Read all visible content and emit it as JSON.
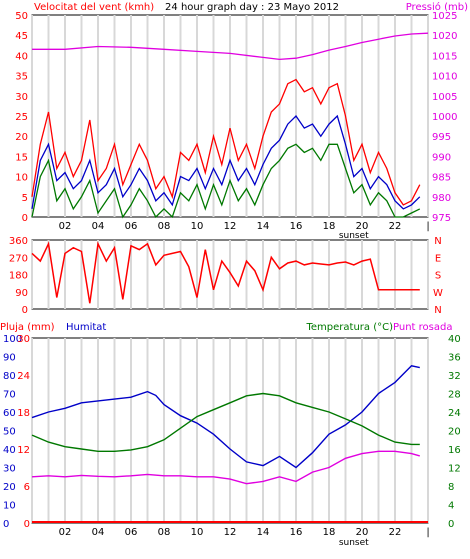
{
  "chart_data": [
    {
      "type": "line",
      "title": "24 hour graph day : 23 Mayo 2012",
      "ylabel_left": "Velocitat del vent (kmh)",
      "ylabel_right": "Pressió (mb)",
      "x_ticks": [
        "02",
        "04",
        "06",
        "08",
        "10",
        "12",
        "14",
        "16",
        "18",
        "20",
        "22",
        "|"
      ],
      "x_annotation": "sunset",
      "x_annotation_at": 19.5,
      "xlim": [
        0,
        24
      ],
      "ylim_left": [
        0,
        50
      ],
      "ylim_right": [
        975,
        1025
      ],
      "y_ticks_left": [
        0,
        5,
        10,
        15,
        20,
        25,
        30,
        35,
        40,
        45,
        50
      ],
      "y_ticks_right": [
        975,
        980,
        985,
        990,
        995,
        1000,
        1005,
        1010,
        1015,
        1020,
        1025
      ],
      "grid": true,
      "colors": {
        "gust": "#ff0000",
        "average": "#0000c8",
        "speed": "#007800",
        "pressure": "#e000e0"
      },
      "series": [
        {
          "axis": "left",
          "color": "#ff0000",
          "x": [
            0.0,
            0.5,
            1.0,
            1.5,
            2.0,
            2.5,
            3.0,
            3.5,
            4.0,
            4.5,
            5.0,
            5.5,
            6.0,
            6.5,
            7.0,
            7.5,
            8.0,
            8.5,
            9.0,
            9.5,
            10.0,
            10.5,
            11.0,
            11.5,
            12.0,
            12.5,
            13.0,
            13.5,
            14.0,
            14.5,
            15.0,
            15.5,
            16.0,
            16.5,
            17.0,
            17.5,
            18.0,
            18.5,
            19.0,
            19.5,
            20.0,
            20.5,
            21.0,
            21.5,
            22.0,
            22.5,
            23.0,
            23.5
          ],
          "values": [
            5,
            18,
            26,
            12,
            16,
            10,
            14,
            24,
            9,
            12,
            18,
            8,
            13,
            18,
            14,
            7,
            10,
            5,
            16,
            14,
            18,
            11,
            20,
            13,
            22,
            14,
            18,
            12,
            20,
            26,
            28,
            33,
            34,
            31,
            32,
            28,
            32,
            33,
            25,
            14,
            18,
            11,
            16,
            12,
            6,
            3,
            4,
            8
          ]
        },
        {
          "axis": "left",
          "color": "#0000c8",
          "x": [
            0.0,
            0.5,
            1.0,
            1.5,
            2.0,
            2.5,
            3.0,
            3.5,
            4.0,
            4.5,
            5.0,
            5.5,
            6.0,
            6.5,
            7.0,
            7.5,
            8.0,
            8.5,
            9.0,
            9.5,
            10.0,
            10.5,
            11.0,
            11.5,
            12.0,
            12.5,
            13.0,
            13.5,
            14.0,
            14.5,
            15.0,
            15.5,
            16.0,
            16.5,
            17.0,
            17.5,
            18.0,
            18.5,
            19.0,
            19.5,
            20.0,
            20.5,
            21.0,
            21.5,
            22.0,
            22.5,
            23.0,
            23.5
          ],
          "values": [
            2,
            14,
            18,
            9,
            11,
            7,
            9,
            14,
            6,
            8,
            12,
            5,
            8,
            12,
            9,
            4,
            6,
            3,
            10,
            9,
            12,
            7,
            12,
            8,
            14,
            9,
            12,
            8,
            13,
            17,
            19,
            23,
            25,
            22,
            23,
            20,
            23,
            25,
            18,
            10,
            12,
            7,
            10,
            8,
            4,
            2,
            3,
            5
          ]
        },
        {
          "axis": "left",
          "color": "#007800",
          "x": [
            0.0,
            0.5,
            1.0,
            1.5,
            2.0,
            2.5,
            3.0,
            3.5,
            4.0,
            4.5,
            5.0,
            5.5,
            6.0,
            6.5,
            7.0,
            7.5,
            8.0,
            8.5,
            9.0,
            9.5,
            10.0,
            10.5,
            11.0,
            11.5,
            12.0,
            12.5,
            13.0,
            13.5,
            14.0,
            14.5,
            15.0,
            15.5,
            16.0,
            16.5,
            17.0,
            17.5,
            18.0,
            18.5,
            19.0,
            19.5,
            20.0,
            20.5,
            21.0,
            21.5,
            22.0,
            22.5,
            23.0,
            23.5
          ],
          "values": [
            0,
            10,
            14,
            4,
            7,
            2,
            5,
            9,
            1,
            4,
            7,
            0,
            3,
            7,
            4,
            0,
            2,
            0,
            6,
            4,
            8,
            2,
            8,
            3,
            9,
            4,
            7,
            3,
            8,
            12,
            14,
            17,
            18,
            16,
            17,
            14,
            18,
            18,
            12,
            6,
            8,
            3,
            6,
            4,
            0,
            0,
            1,
            2
          ]
        },
        {
          "axis": "right",
          "color": "#e000e0",
          "x": [
            0,
            2,
            4,
            6,
            8,
            10,
            12,
            14,
            15,
            16,
            17,
            18,
            19,
            20,
            21,
            22,
            23,
            24
          ],
          "values": [
            1016.5,
            1016.5,
            1017.2,
            1017.0,
            1016.5,
            1016.0,
            1015.5,
            1014.5,
            1014.0,
            1014.3,
            1015.2,
            1016.3,
            1017.2,
            1018.2,
            1019.0,
            1019.8,
            1020.3,
            1020.5
          ]
        }
      ]
    },
    {
      "type": "line",
      "ylabel_right_ticks": [
        "N",
        "W",
        "S",
        "E",
        "N"
      ],
      "y_ticks_left": [
        0,
        90,
        180,
        270,
        360
      ],
      "ylim": [
        0,
        360
      ],
      "xlim": [
        0,
        24
      ],
      "grid": true,
      "series": [
        {
          "color": "#ff0000",
          "x": [
            0.0,
            0.5,
            1.0,
            1.5,
            2.0,
            2.5,
            3.0,
            3.5,
            4.0,
            4.5,
            5.0,
            5.5,
            6.0,
            6.5,
            7.0,
            7.5,
            8.0,
            8.5,
            9.0,
            9.5,
            10.0,
            10.5,
            11.0,
            11.5,
            12.0,
            12.5,
            13.0,
            13.5,
            14.0,
            14.5,
            15.0,
            15.5,
            16.0,
            16.5,
            17.0,
            17.5,
            18.0,
            18.5,
            19.0,
            19.5,
            20.0,
            20.5,
            21.0,
            21.5,
            22.0,
            22.5,
            23.0,
            23.5
          ],
          "values": [
            290,
            250,
            340,
            60,
            290,
            320,
            300,
            30,
            340,
            250,
            320,
            50,
            330,
            310,
            340,
            230,
            280,
            290,
            300,
            220,
            60,
            310,
            100,
            250,
            190,
            120,
            250,
            200,
            100,
            270,
            210,
            240,
            250,
            230,
            240,
            235,
            230,
            240,
            245,
            230,
            250,
            260,
            100,
            100,
            100,
            100,
            100,
            100
          ]
        }
      ]
    },
    {
      "type": "line",
      "ylabel_left_1": "Pluja (mm)",
      "ylabel_left_2": "Humitat",
      "ylabel_right_1": "Temperatura (°C)",
      "ylabel_right_2": "Punt rosada",
      "x_ticks": [
        "02",
        "04",
        "06",
        "08",
        "10",
        "12",
        "14",
        "16",
        "18",
        "20",
        "22",
        "|"
      ],
      "x_annotation": "sunset",
      "x_annotation_at": 19.5,
      "xlim": [
        0,
        24
      ],
      "y_ticks_rain": [
        0,
        6,
        12,
        18,
        24,
        30
      ],
      "y_ticks_humidity": [
        0,
        10,
        20,
        30,
        40,
        50,
        60,
        70,
        80,
        90,
        100
      ],
      "y_ticks_temperature": [
        0,
        4,
        8,
        12,
        16,
        20,
        24,
        28,
        32,
        36,
        40
      ],
      "ylim_humidity": [
        0,
        100
      ],
      "ylim_temperature": [
        0,
        40
      ],
      "colors": {
        "rain": "#ff0000",
        "humidity": "#0000c8",
        "temperature": "#007800",
        "dewpoint": "#e000e0"
      },
      "series": [
        {
          "axis": "humidity",
          "color": "#0000c8",
          "x": [
            0,
            1,
            2,
            3,
            4,
            5,
            6,
            7,
            7.5,
            8,
            9,
            10,
            11,
            12,
            13,
            14,
            15,
            16,
            17,
            18,
            19,
            20,
            21,
            22,
            23,
            23.5
          ],
          "values": [
            57,
            60,
            62,
            65,
            66,
            67,
            68,
            71,
            69,
            64,
            58,
            54,
            48,
            40,
            33,
            31,
            36,
            30,
            38,
            48,
            53,
            60,
            70,
            76,
            85,
            84
          ]
        },
        {
          "axis": "temperature",
          "color": "#007800",
          "x": [
            0,
            1,
            2,
            3,
            4,
            5,
            6,
            7,
            8,
            9,
            10,
            11,
            12,
            13,
            14,
            15,
            16,
            17,
            18,
            19,
            20,
            21,
            22,
            23,
            23.5
          ],
          "values": [
            19,
            17.5,
            16.5,
            16,
            15.5,
            15.5,
            15.8,
            16.5,
            18,
            20.5,
            23,
            24.5,
            26,
            27.5,
            28,
            27.5,
            26,
            25,
            24,
            22.5,
            21,
            19,
            17.5,
            17,
            17
          ]
        },
        {
          "axis": "temperature",
          "color": "#e000e0",
          "x": [
            0,
            1,
            2,
            3,
            4,
            5,
            6,
            7,
            8,
            9,
            10,
            11,
            12,
            13,
            14,
            15,
            16,
            17,
            18,
            19,
            20,
            21,
            22,
            23,
            23.5
          ],
          "values": [
            10,
            10.2,
            10,
            10.3,
            10.1,
            10,
            10.2,
            10.5,
            10.2,
            10.2,
            10,
            10,
            9.5,
            8.5,
            9,
            10,
            9,
            11,
            12,
            14,
            15,
            15.5,
            15.5,
            15,
            14.5
          ]
        },
        {
          "axis": "rain",
          "color": "#ff0000",
          "x": [
            0,
            24
          ],
          "values": [
            0,
            0
          ]
        }
      ]
    }
  ]
}
